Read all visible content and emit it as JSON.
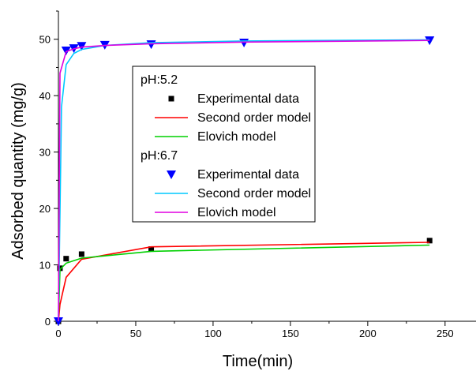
{
  "chart_data": {
    "type": "scatter",
    "xlabel": "Time(min)",
    "ylabel": "Adsorbed quantity (mg/g)",
    "xlim": [
      0,
      270
    ],
    "ylim": [
      0,
      55
    ],
    "xticks": [
      "0",
      "50",
      "100",
      "150",
      "200",
      "250"
    ],
    "yticks": [
      "0",
      "10",
      "20",
      "30",
      "40",
      "50"
    ],
    "legend_position": "center-left",
    "legend_groups": [
      {
        "title": "pH:5.2",
        "series": [
          {
            "name": "Experimental data",
            "kind": "scatter",
            "marker": "square",
            "color": "#000000",
            "x": [
              0,
              1,
              5,
              15,
              60,
              240
            ],
            "y": [
              0,
              9.4,
              11.1,
              11.9,
              12.8,
              14.3
            ]
          },
          {
            "name": "Second order model",
            "kind": "line",
            "color": "#ff0000",
            "x": [
              0,
              1,
              5,
              15,
              60,
              240
            ],
            "y": [
              0,
              3.0,
              7.8,
              11.0,
              13.2,
              14.0
            ]
          },
          {
            "name": "Elovich model",
            "kind": "line",
            "color": "#00d000",
            "x": [
              0,
              1,
              5,
              15,
              60,
              240
            ],
            "y": [
              0,
              9.2,
              10.3,
              11.2,
              12.4,
              13.5
            ]
          }
        ]
      },
      {
        "title": "pH:6.7",
        "series": [
          {
            "name": "Experimental data",
            "kind": "scatter",
            "marker": "triangle-down",
            "color": "#0000ff",
            "x": [
              0,
              5,
              10,
              15,
              30,
              60,
              120,
              240
            ],
            "y": [
              0,
              48.0,
              48.4,
              48.8,
              49.0,
              49.1,
              49.4,
              49.8
            ]
          },
          {
            "name": "Second order model",
            "kind": "line",
            "color": "#00c8ff",
            "x": [
              0,
              2,
              5,
              10,
              15,
              30,
              60,
              120,
              240
            ],
            "y": [
              0,
              38.0,
              45.5,
              47.5,
              48.2,
              48.9,
              49.4,
              49.7,
              49.9
            ]
          },
          {
            "name": "Elovich model",
            "kind": "line",
            "color": "#e000e0",
            "x": [
              0,
              1,
              5,
              10,
              15,
              30,
              60,
              120,
              240
            ],
            "y": [
              0,
              44.0,
              47.8,
              48.3,
              48.6,
              48.9,
              49.2,
              49.5,
              49.8
            ]
          }
        ]
      }
    ]
  }
}
